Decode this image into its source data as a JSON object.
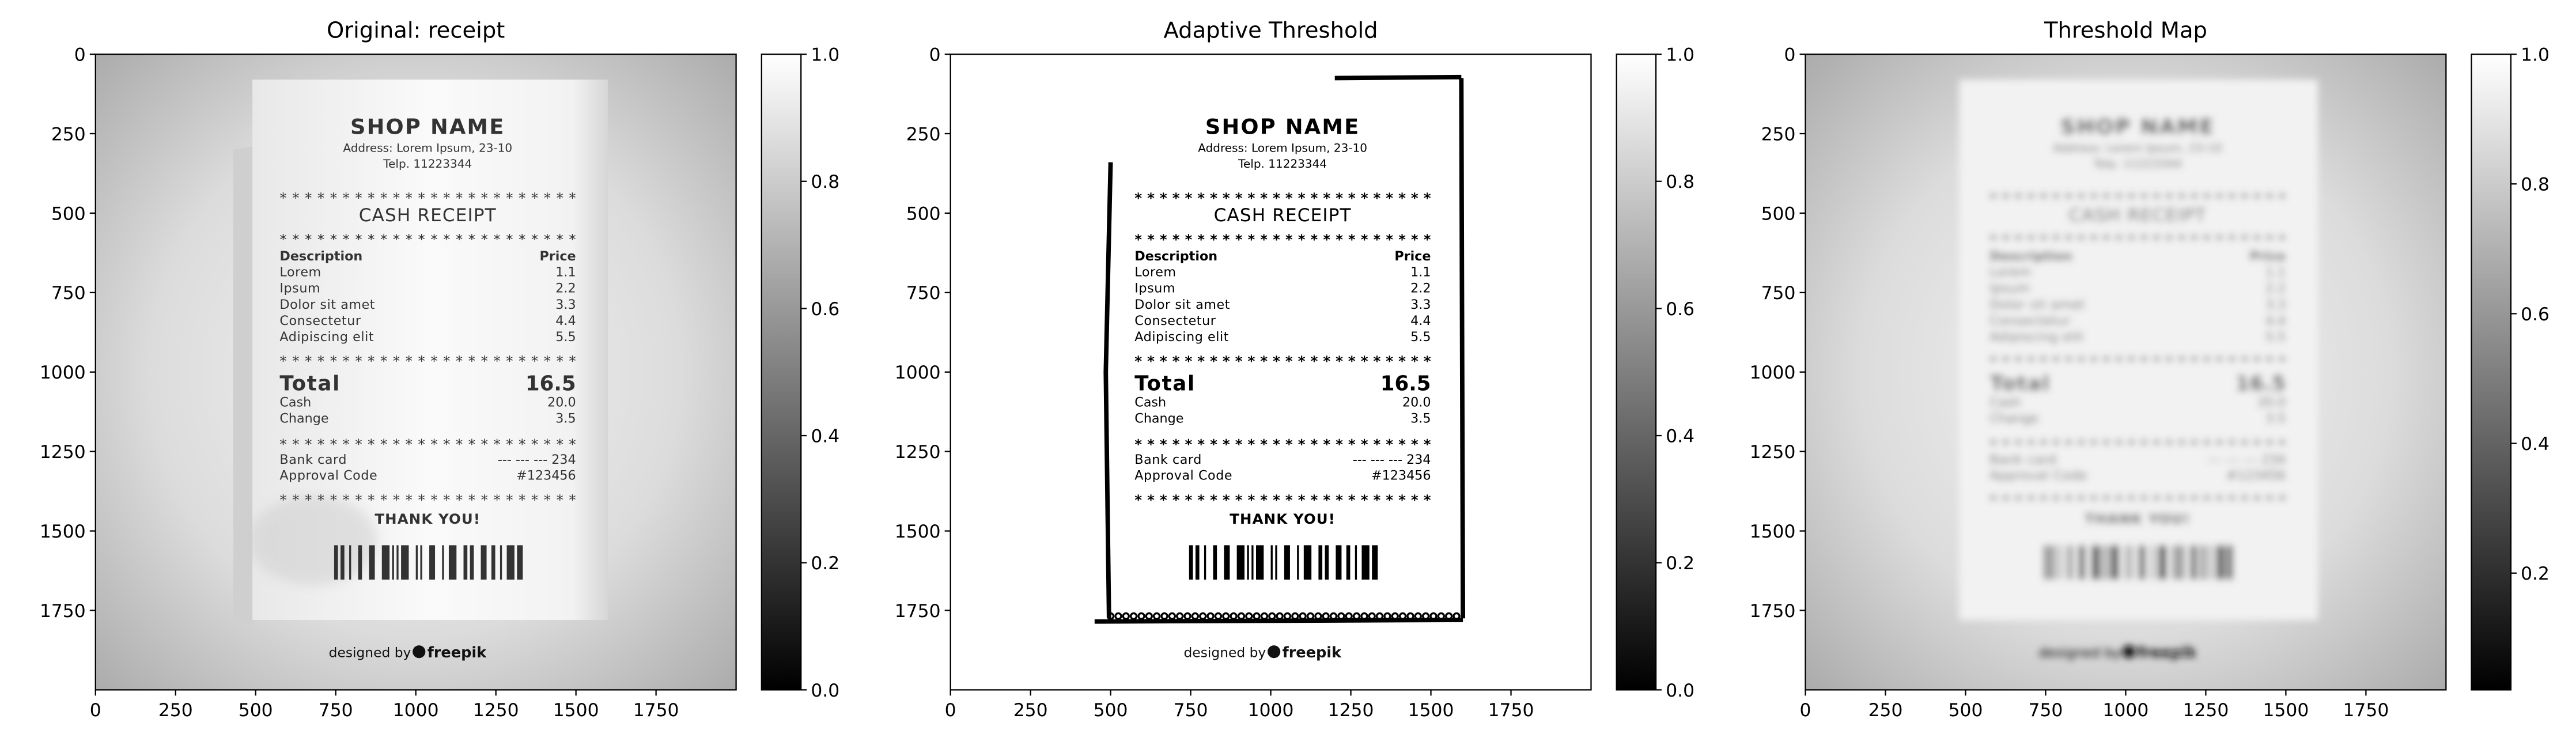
{
  "chart_data": [
    {
      "type": "image",
      "title": "Original: receipt",
      "cmap": "gray",
      "xlim": [
        0,
        2000
      ],
      "ylim": [
        2000,
        0
      ],
      "xticks": [
        0,
        250,
        500,
        750,
        1000,
        1250,
        1500,
        1750
      ],
      "yticks": [
        0,
        250,
        500,
        750,
        1000,
        1250,
        1500,
        1750
      ],
      "colorbar": {
        "lim": [
          0,
          1
        ],
        "ticks": [
          {
            "value": 0,
            "label": "0.0"
          },
          0.2,
          0.4,
          0.6,
          0.8,
          {
            "value": 1,
            "label": "1.0"
          }
        ]
      }
    },
    {
      "type": "image",
      "title": "Adaptive Threshold",
      "cmap": "gray",
      "xlim": [
        0,
        2000
      ],
      "ylim": [
        2000,
        0
      ],
      "xticks": [
        0,
        250,
        500,
        750,
        1000,
        1250,
        1500,
        1750
      ],
      "yticks": [
        0,
        250,
        500,
        750,
        1000,
        1250,
        1500,
        1750
      ],
      "colorbar": {
        "lim": [
          0,
          1
        ],
        "ticks": [
          {
            "value": 0,
            "label": "0.0"
          },
          0.2,
          0.4,
          0.6,
          0.8,
          {
            "value": 1,
            "label": "1.0"
          }
        ]
      }
    },
    {
      "type": "image",
      "title": "Threshold Map",
      "cmap": "gray",
      "xlim": [
        0,
        2000
      ],
      "ylim": [
        2000,
        0
      ],
      "xticks": [
        0,
        250,
        500,
        750,
        1000,
        1250,
        1500,
        1750
      ],
      "yticks": [
        0,
        250,
        500,
        750,
        1000,
        1250,
        1500,
        1750
      ],
      "colorbar": {
        "lim": [
          0.02,
          1
        ],
        "ticks": [
          0.2,
          0.4,
          0.6,
          0.8,
          {
            "value": 1,
            "label": "1.0"
          }
        ]
      }
    }
  ],
  "receipt": {
    "shop_name": "SHOP NAME",
    "address": "Address: Lorem Ipsum, 23-10",
    "telp": "Telp. 11223344",
    "separator": "************************",
    "heading": "CASH RECEIPT",
    "columns": [
      "Description",
      "Price"
    ],
    "items": [
      [
        "Lorem",
        "1.1"
      ],
      [
        "Ipsum",
        "2.2"
      ],
      [
        "Dolor sit amet",
        "3.3"
      ],
      [
        "Consectetur",
        "4.4"
      ],
      [
        "Adipiscing elit",
        "5.5"
      ]
    ],
    "total": [
      "Total",
      "16.5"
    ],
    "payments": [
      [
        "Cash",
        "20.0"
      ],
      [
        "Change",
        "3.5"
      ]
    ],
    "card": [
      [
        "Bank card",
        "--- --- --- 234"
      ],
      [
        "Approval Code",
        "#123456"
      ]
    ],
    "thanks": "THANK YOU!",
    "credit": "designed by",
    "brand": "freepik"
  }
}
